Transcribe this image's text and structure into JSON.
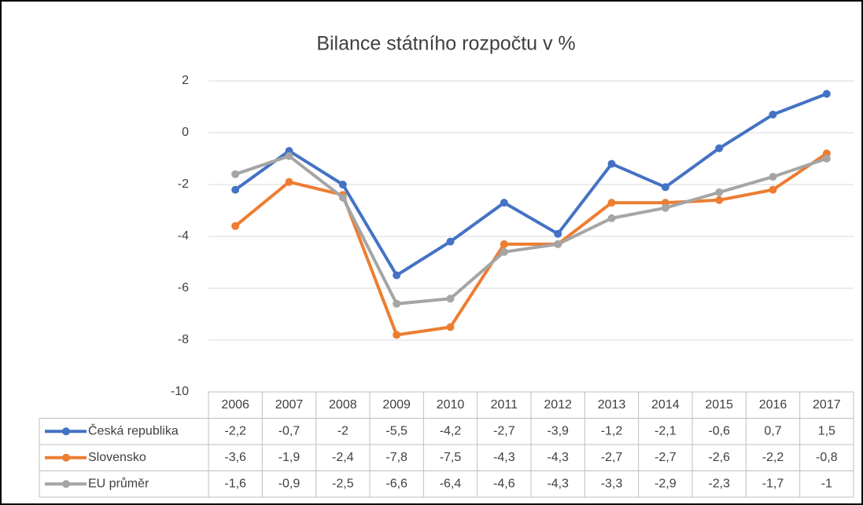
{
  "chart_data": {
    "type": "line",
    "title": "Bilance státního rozpočtu v %",
    "categories": [
      "2006",
      "2007",
      "2008",
      "2009",
      "2010",
      "2011",
      "2012",
      "2013",
      "2014",
      "2015",
      "2016",
      "2017"
    ],
    "series": [
      {
        "name": "Česká republika",
        "color": "#4472c4",
        "values": [
          -2.2,
          -0.7,
          -2,
          -5.5,
          -4.2,
          -2.7,
          -3.9,
          -1.2,
          -2.1,
          -0.6,
          0.7,
          1.5
        ],
        "value_labels": [
          "-2,2",
          "-0,7",
          "-2",
          "-5,5",
          "-4,2",
          "-2,7",
          "-3,9",
          "-1,2",
          "-2,1",
          "-0,6",
          "0,7",
          "1,5"
        ]
      },
      {
        "name": "Slovensko",
        "color": "#ed7d31",
        "values": [
          -3.6,
          -1.9,
          -2.4,
          -7.8,
          -7.5,
          -4.3,
          -4.3,
          -2.7,
          -2.7,
          -2.6,
          -2.2,
          -0.8
        ],
        "value_labels": [
          "-3,6",
          "-1,9",
          "-2,4",
          "-7,8",
          "-7,5",
          "-4,3",
          "-4,3",
          "-2,7",
          "-2,7",
          "-2,6",
          "-2,2",
          "-0,8"
        ]
      },
      {
        "name": "EU průměr",
        "color": "#a5a5a5",
        "values": [
          -1.6,
          -0.9,
          -2.5,
          -6.6,
          -6.4,
          -4.6,
          -4.3,
          -3.3,
          -2.9,
          -2.3,
          -1.7,
          -1
        ],
        "value_labels": [
          "-1,6",
          "-0,9",
          "-2,5",
          "-6,6",
          "-6,4",
          "-4,6",
          "-4,3",
          "-3,3",
          "-2,9",
          "-2,3",
          "-1,7",
          "-1"
        ]
      }
    ],
    "ylim": [
      -10,
      2
    ],
    "yticks": [
      -10,
      -8,
      -6,
      -4,
      -2,
      0,
      2
    ],
    "grid": true
  }
}
